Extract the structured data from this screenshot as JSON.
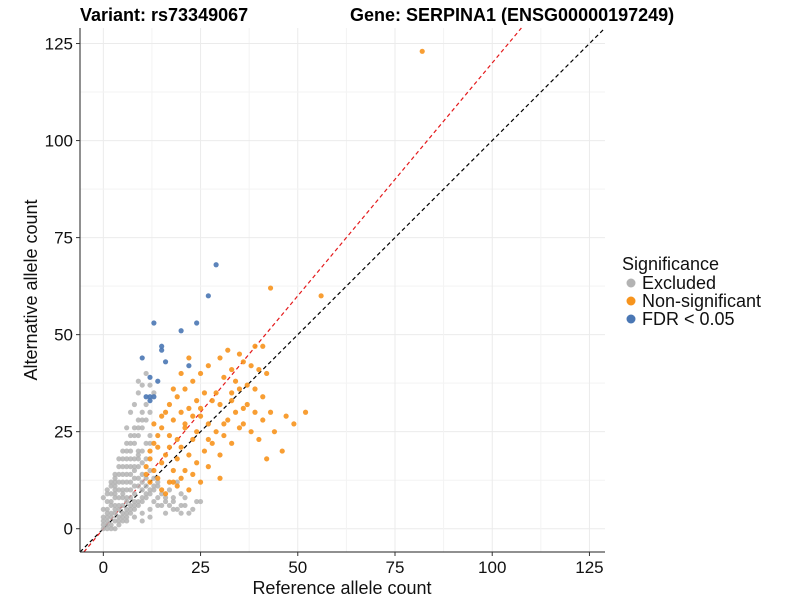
{
  "chart_data": {
    "type": "scatter",
    "title_left": "Variant: rs73349067",
    "title_right": "Gene: SERPINA1 (ENSG00000197249)",
    "xlabel": "Reference allele count",
    "ylabel": "Alternative allele count",
    "xlim": [
      -6,
      129
    ],
    "ylim": [
      -6,
      129
    ],
    "x_ticks": [
      0,
      25,
      50,
      75,
      100,
      125
    ],
    "y_ticks": [
      0,
      25,
      50,
      75,
      100,
      125
    ],
    "grid": true,
    "reference_lines": [
      {
        "name": "identity",
        "slope": 1.0,
        "intercept": 0,
        "color": "#000000",
        "style": "dashed"
      },
      {
        "name": "fitted",
        "slope": 1.2,
        "intercept": 0,
        "color": "#e41a1c",
        "style": "dashed"
      }
    ],
    "legend": {
      "title": "Significance",
      "position": "right",
      "entries": [
        {
          "label": "Excluded",
          "color": "#b3b3b3"
        },
        {
          "label": "Non-significant",
          "color": "#f7941d"
        },
        {
          "label": "FDR < 0.05",
          "color": "#4a77b4"
        }
      ]
    },
    "series": [
      {
        "name": "FDR < 0.05",
        "color": "#4a77b4",
        "points": [
          [
            29,
            68
          ],
          [
            27,
            60
          ],
          [
            13,
            53
          ],
          [
            24,
            53
          ],
          [
            20,
            51
          ],
          [
            15,
            47
          ],
          [
            15,
            46
          ],
          [
            10,
            44
          ],
          [
            16,
            43
          ],
          [
            22,
            42
          ],
          [
            12,
            39
          ],
          [
            14,
            38
          ],
          [
            11,
            34
          ],
          [
            12,
            34
          ],
          [
            13,
            34
          ],
          [
            12,
            33
          ]
        ]
      },
      {
        "name": "Non-significant",
        "color": "#f7941d",
        "points": [
          [
            82,
            123
          ],
          [
            43,
            62
          ],
          [
            56,
            60
          ],
          [
            39,
            47
          ],
          [
            41,
            47
          ],
          [
            35,
            45
          ],
          [
            36,
            43
          ],
          [
            38,
            42
          ],
          [
            33,
            41
          ],
          [
            40,
            41
          ],
          [
            42,
            40
          ],
          [
            31,
            39
          ],
          [
            34,
            38
          ],
          [
            37,
            37
          ],
          [
            39,
            36
          ],
          [
            29,
            35
          ],
          [
            33,
            35
          ],
          [
            41,
            34
          ],
          [
            28,
            33
          ],
          [
            30,
            32
          ],
          [
            36,
            31
          ],
          [
            43,
            30
          ],
          [
            52,
            30
          ],
          [
            47,
            29
          ],
          [
            25,
            29
          ],
          [
            32,
            28
          ],
          [
            49,
            27
          ],
          [
            27,
            27
          ],
          [
            35,
            26
          ],
          [
            21,
            26
          ],
          [
            24,
            25
          ],
          [
            31,
            24
          ],
          [
            23,
            23
          ],
          [
            28,
            22
          ],
          [
            33,
            22
          ],
          [
            20,
            21
          ],
          [
            26,
            20
          ],
          [
            30,
            19
          ],
          [
            22,
            19
          ],
          [
            19,
            18
          ],
          [
            24,
            17
          ],
          [
            27,
            16
          ],
          [
            21,
            15
          ],
          [
            18,
            15
          ],
          [
            23,
            14
          ],
          [
            20,
            13
          ],
          [
            17,
            12
          ],
          [
            25,
            12
          ],
          [
            30,
            13
          ],
          [
            19,
            11
          ],
          [
            15,
            10
          ],
          [
            16,
            9
          ],
          [
            22,
            10
          ],
          [
            18,
            12
          ],
          [
            14,
            13
          ],
          [
            13,
            15
          ],
          [
            15,
            17
          ],
          [
            16,
            19
          ],
          [
            14,
            21
          ],
          [
            12,
            18
          ],
          [
            13,
            22
          ],
          [
            17,
            24
          ],
          [
            15,
            26
          ],
          [
            18,
            28
          ],
          [
            20,
            30
          ],
          [
            22,
            31
          ],
          [
            24,
            33
          ],
          [
            26,
            35
          ],
          [
            21,
            36
          ],
          [
            19,
            34
          ],
          [
            17,
            32
          ],
          [
            16,
            30
          ],
          [
            18,
            36
          ],
          [
            23,
            38
          ],
          [
            25,
            40
          ],
          [
            27,
            42
          ],
          [
            22,
            44
          ],
          [
            20,
            40
          ],
          [
            30,
            44
          ],
          [
            32,
            46
          ],
          [
            34,
            30
          ],
          [
            36,
            27
          ],
          [
            38,
            25
          ],
          [
            40,
            23
          ],
          [
            44,
            25
          ],
          [
            46,
            20
          ],
          [
            42,
            18
          ],
          [
            11,
            14
          ],
          [
            12,
            12
          ],
          [
            11,
            16
          ],
          [
            12,
            20
          ],
          [
            14,
            24
          ],
          [
            13,
            27
          ],
          [
            15,
            29
          ],
          [
            17,
            21
          ],
          [
            19,
            23
          ],
          [
            21,
            27
          ],
          [
            23,
            29
          ],
          [
            25,
            31
          ],
          [
            27,
            23
          ],
          [
            29,
            25
          ],
          [
            31,
            27
          ],
          [
            33,
            33
          ],
          [
            35,
            36
          ],
          [
            37,
            32
          ],
          [
            39,
            30
          ],
          [
            41,
            28
          ]
        ]
      },
      {
        "name": "Excluded",
        "color": "#b3b3b3",
        "points": [
          [
            0,
            0
          ],
          [
            1,
            1
          ],
          [
            2,
            1
          ],
          [
            1,
            2
          ],
          [
            2,
            3
          ],
          [
            3,
            2
          ],
          [
            3,
            4
          ],
          [
            4,
            3
          ],
          [
            4,
            5
          ],
          [
            5,
            4
          ],
          [
            5,
            6
          ],
          [
            6,
            5
          ],
          [
            6,
            7
          ],
          [
            7,
            6
          ],
          [
            7,
            8
          ],
          [
            8,
            7
          ],
          [
            0,
            2
          ],
          [
            2,
            0
          ],
          [
            1,
            4
          ],
          [
            4,
            1
          ],
          [
            3,
            6
          ],
          [
            6,
            3
          ],
          [
            5,
            8
          ],
          [
            8,
            5
          ],
          [
            7,
            10
          ],
          [
            10,
            7
          ],
          [
            2,
            6
          ],
          [
            6,
            2
          ],
          [
            3,
            8
          ],
          [
            8,
            3
          ],
          [
            4,
            10
          ],
          [
            10,
            4
          ],
          [
            5,
            12
          ],
          [
            12,
            5
          ],
          [
            6,
            14
          ],
          [
            14,
            6
          ],
          [
            7,
            16
          ],
          [
            16,
            7
          ],
          [
            8,
            18
          ],
          [
            18,
            8
          ],
          [
            9,
            20
          ],
          [
            20,
            9
          ],
          [
            3,
            12
          ],
          [
            4,
            14
          ],
          [
            5,
            16
          ],
          [
            6,
            18
          ],
          [
            7,
            20
          ],
          [
            8,
            22
          ],
          [
            9,
            24
          ],
          [
            10,
            26
          ],
          [
            4,
            18
          ],
          [
            5,
            20
          ],
          [
            6,
            22
          ],
          [
            7,
            24
          ],
          [
            8,
            26
          ],
          [
            9,
            28
          ],
          [
            10,
            30
          ],
          [
            11,
            32
          ],
          [
            7,
            30
          ],
          [
            8,
            32
          ],
          [
            9,
            35
          ],
          [
            10,
            37
          ],
          [
            6,
            26
          ],
          [
            11,
            28
          ],
          [
            12,
            30
          ],
          [
            13,
            10
          ],
          [
            14,
            8
          ],
          [
            15,
            6
          ],
          [
            16,
            4
          ],
          [
            12,
            3
          ],
          [
            10,
            2
          ],
          [
            9,
            11
          ],
          [
            11,
            13
          ],
          [
            12,
            15
          ],
          [
            10,
            17
          ],
          [
            9,
            19
          ],
          [
            8,
            13
          ],
          [
            7,
            12
          ],
          [
            6,
            10
          ],
          [
            5,
            9
          ],
          [
            4,
            8
          ],
          [
            3,
            5
          ],
          [
            2,
            4
          ],
          [
            1,
            3
          ],
          [
            0,
            5
          ],
          [
            1,
            7
          ],
          [
            2,
            9
          ],
          [
            3,
            11
          ],
          [
            0,
            8
          ],
          [
            1,
            10
          ],
          [
            2,
            12
          ],
          [
            3,
            14
          ],
          [
            18,
            5
          ],
          [
            20,
            6
          ],
          [
            22,
            4
          ],
          [
            24,
            7
          ],
          [
            17,
            10
          ],
          [
            19,
            12
          ],
          [
            21,
            8
          ],
          [
            12,
            37
          ],
          [
            11,
            40
          ],
          [
            9,
            38
          ],
          [
            13,
            35
          ],
          [
            8,
            9
          ],
          [
            9,
            6
          ],
          [
            10,
            10
          ],
          [
            11,
            8
          ],
          [
            12,
            9
          ],
          [
            13,
            7
          ],
          [
            6,
            8
          ],
          [
            7,
            4
          ],
          [
            5,
            2
          ],
          [
            4,
            6
          ],
          [
            3,
            9
          ],
          [
            8,
            15
          ],
          [
            9,
            16
          ],
          [
            10,
            14
          ],
          [
            11,
            18
          ],
          [
            12,
            22
          ],
          [
            7,
            18
          ],
          [
            6,
            16
          ],
          [
            5,
            14
          ],
          [
            4,
            12
          ],
          [
            3,
            10
          ],
          [
            8,
            11
          ],
          [
            9,
            13
          ],
          [
            10,
            12
          ],
          [
            11,
            11
          ],
          [
            13,
            13
          ],
          [
            14,
            11
          ],
          [
            15,
            9
          ],
          [
            16,
            8
          ],
          [
            17,
            6
          ],
          [
            18,
            7
          ],
          [
            19,
            5
          ],
          [
            20,
            4
          ],
          [
            21,
            6
          ],
          [
            23,
            5
          ],
          [
            25,
            7
          ],
          [
            2,
            7
          ],
          [
            1,
            5
          ],
          [
            0,
            3
          ],
          [
            0,
            1
          ],
          [
            1,
            0
          ],
          [
            3,
            0
          ],
          [
            4,
            2
          ],
          [
            5,
            3
          ],
          [
            6,
            4
          ],
          [
            7,
            5
          ],
          [
            8,
            6
          ],
          [
            9,
            7
          ],
          [
            10,
            8
          ],
          [
            11,
            9
          ],
          [
            12,
            10
          ],
          [
            13,
            11
          ],
          [
            14,
            12
          ],
          [
            5,
            10
          ],
          [
            6,
            12
          ],
          [
            7,
            14
          ],
          [
            8,
            16
          ],
          [
            9,
            18
          ],
          [
            10,
            20
          ],
          [
            11,
            22
          ],
          [
            12,
            24
          ],
          [
            6,
            20
          ],
          [
            7,
            22
          ],
          [
            8,
            24
          ],
          [
            9,
            26
          ],
          [
            10,
            28
          ],
          [
            5,
            18
          ],
          [
            4,
            16
          ],
          [
            3,
            13
          ],
          [
            2,
            11
          ],
          [
            1,
            9
          ]
        ]
      }
    ]
  }
}
